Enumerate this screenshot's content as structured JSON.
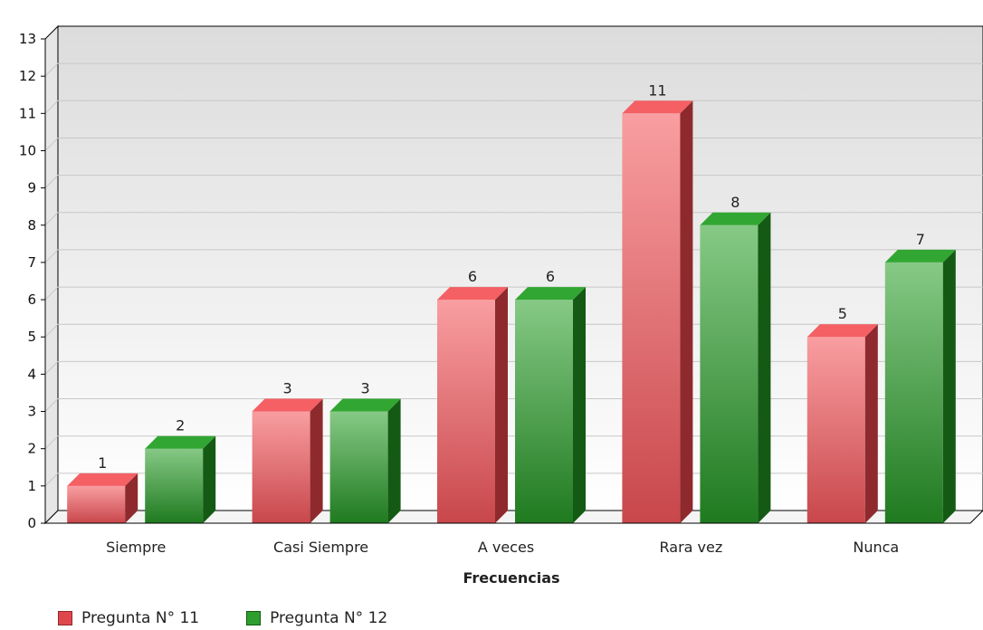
{
  "chart_data": {
    "type": "bar",
    "categories": [
      "Siempre",
      "Casi Siempre",
      "A veces",
      "Rara vez",
      "Nunca"
    ],
    "series": [
      {
        "name": "Pregunta N° 11",
        "values": [
          1,
          3,
          6,
          11,
          5
        ],
        "color": "#e0474c"
      },
      {
        "name": "Pregunta N° 12",
        "values": [
          2,
          3,
          6,
          8,
          7
        ],
        "color": "#2e9e2e"
      }
    ],
    "title": "",
    "xlabel": "Frecuencias",
    "ylabel": "",
    "ylim": [
      0,
      13
    ],
    "yticks": [
      "0",
      "1",
      "2",
      "3",
      "4",
      "5",
      "6",
      "7",
      "8",
      "9",
      "10",
      "11",
      "12",
      "13"
    ],
    "grid": true,
    "legend_position": "bottom-left",
    "style": "3d"
  }
}
